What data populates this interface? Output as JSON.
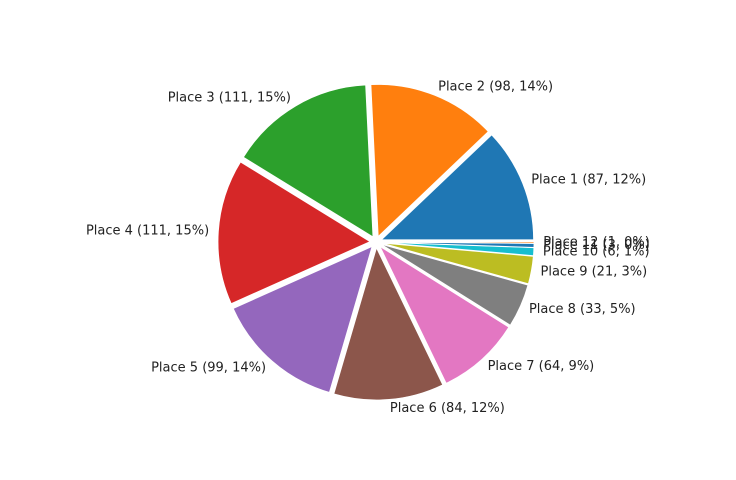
{
  "chart_data": {
    "type": "pie",
    "title": "",
    "labels": [
      "Place 1 (87, 12%)",
      "Place 2 (98, 14%)",
      "Place 3 (111, 15%)",
      "Place 4 (111, 15%)",
      "Place 5 (99, 14%)",
      "Place 6 (84, 12%)",
      "Place 7 (64, 9%)",
      "Place 8 (33, 5%)",
      "Place 9 (21, 3%)",
      "Place 10 (6, 1%)",
      "Place 11 (3, 0%)",
      "Place 12 (1, 0%)"
    ],
    "values": [
      87,
      98,
      111,
      111,
      99,
      84,
      64,
      33,
      21,
      6,
      3,
      1
    ],
    "colors": [
      "#1f77b4",
      "#ff7f0e",
      "#2ca02c",
      "#d62728",
      "#9467bd",
      "#8c564b",
      "#e377c2",
      "#7f7f7f",
      "#bcbd22",
      "#17becf",
      "#1f77b4",
      "#ff7f0e"
    ],
    "start_angle_deg": 0,
    "direction": "counterclockwise",
    "exploded": true
  }
}
